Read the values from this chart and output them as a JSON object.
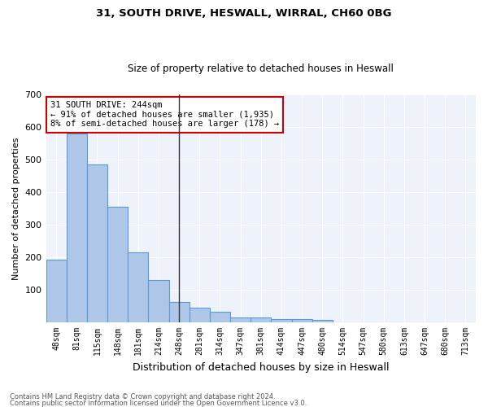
{
  "title1": "31, SOUTH DRIVE, HESWALL, WIRRAL, CH60 0BG",
  "title2": "Size of property relative to detached houses in Heswall",
  "xlabel": "Distribution of detached houses by size in Heswall",
  "ylabel": "Number of detached properties",
  "categories": [
    "48sqm",
    "81sqm",
    "115sqm",
    "148sqm",
    "181sqm",
    "214sqm",
    "248sqm",
    "281sqm",
    "314sqm",
    "347sqm",
    "381sqm",
    "414sqm",
    "447sqm",
    "480sqm",
    "514sqm",
    "547sqm",
    "580sqm",
    "613sqm",
    "647sqm",
    "680sqm",
    "713sqm"
  ],
  "values": [
    192,
    580,
    485,
    355,
    215,
    130,
    63,
    45,
    32,
    16,
    16,
    10,
    10,
    8,
    0,
    0,
    0,
    0,
    0,
    0,
    0
  ],
  "bar_color": "#aec6e8",
  "bar_edge_color": "#5b9bd5",
  "highlight_index": 6,
  "highlight_line_color": "#333333",
  "annotation_text": "31 SOUTH DRIVE: 244sqm\n← 91% of detached houses are smaller (1,935)\n8% of semi-detached houses are larger (178) →",
  "annotation_box_color": "#ffffff",
  "annotation_box_edge_color": "#cc0000",
  "ylim": [
    0,
    700
  ],
  "yticks": [
    0,
    100,
    200,
    300,
    400,
    500,
    600,
    700
  ],
  "background_color": "#eef2fb",
  "grid_color": "#ffffff",
  "footer1": "Contains HM Land Registry data © Crown copyright and database right 2024.",
  "footer2": "Contains public sector information licensed under the Open Government Licence v3.0."
}
